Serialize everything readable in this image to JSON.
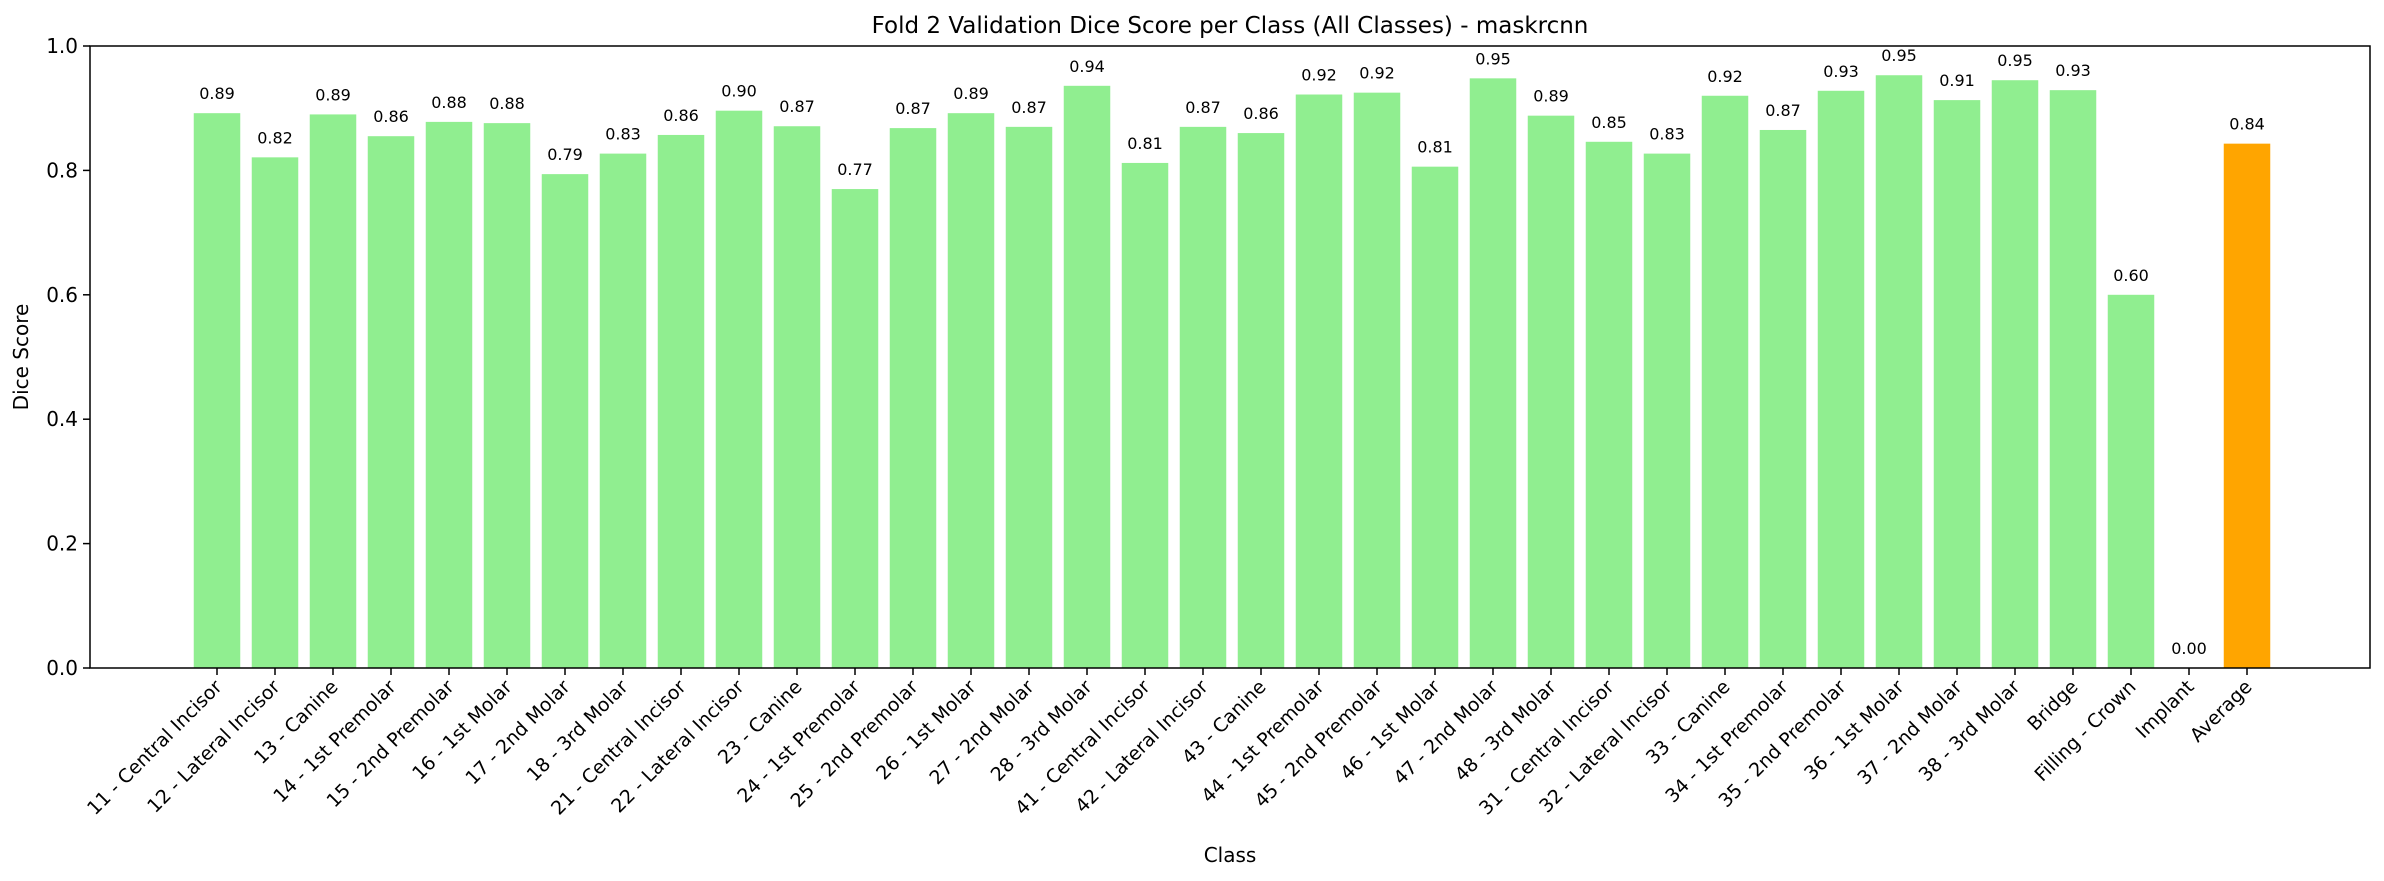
{
  "chart_data": {
    "type": "bar",
    "title": "Fold 2 Validation Dice Score per Class (All Classes) - maskrcnn",
    "xlabel": "Class",
    "ylabel": "Dice Score",
    "ylim": [
      0,
      1.0
    ],
    "yticks": [
      "0.0",
      "0.2",
      "0.4",
      "0.6",
      "0.8",
      "1.0"
    ],
    "grid": false,
    "colors": {
      "class_bar": "#90ee90",
      "average_bar": "#ffa500"
    },
    "categories": [
      "11 - Central Incisor",
      "12 - Lateral Incisor",
      "13 - Canine",
      "14 - 1st Premolar",
      "15 - 2nd Premolar",
      "16 - 1st Molar",
      "17 - 2nd Molar",
      "18 - 3rd Molar",
      "21 - Central Incisor",
      "22 - Lateral Incisor",
      "23 - Canine",
      "24 - 1st Premolar",
      "25 - 2nd Premolar",
      "26 - 1st Molar",
      "27 - 2nd Molar",
      "28 - 3rd Molar",
      "41 - Central Incisor",
      "42 - Lateral Incisor",
      "43 - Canine",
      "44 - 1st Premolar",
      "45 - 2nd Premolar",
      "46 - 1st Molar",
      "47 - 2nd Molar",
      "48 - 3rd Molar",
      "31 - Central Incisor",
      "32 - Lateral Incisor",
      "33 - Canine",
      "34 - 1st Premolar",
      "35 - 2nd Premolar",
      "36 - 1st Molar",
      "37 - 2nd Molar",
      "38 - 3rd Molar",
      "Bridge",
      "Filling - Crown",
      "Implant",
      "Average"
    ],
    "values": [
      0.892,
      0.821,
      0.89,
      0.855,
      0.878,
      0.876,
      0.794,
      0.827,
      0.857,
      0.896,
      0.871,
      0.77,
      0.868,
      0.892,
      0.87,
      0.936,
      0.812,
      0.87,
      0.86,
      0.922,
      0.925,
      0.806,
      0.948,
      0.888,
      0.846,
      0.827,
      0.92,
      0.865,
      0.928,
      0.953,
      0.913,
      0.945,
      0.929,
      0.6,
      0.0,
      0.843
    ],
    "value_labels": [
      "0.89",
      "0.82",
      "0.89",
      "0.86",
      "0.88",
      "0.88",
      "0.79",
      "0.83",
      "0.86",
      "0.90",
      "0.87",
      "0.77",
      "0.87",
      "0.89",
      "0.87",
      "0.94",
      "0.81",
      "0.87",
      "0.86",
      "0.92",
      "0.92",
      "0.81",
      "0.95",
      "0.89",
      "0.85",
      "0.83",
      "0.92",
      "0.87",
      "0.93",
      "0.95",
      "0.91",
      "0.95",
      "0.93",
      "0.60",
      "0.00",
      "0.84"
    ]
  }
}
